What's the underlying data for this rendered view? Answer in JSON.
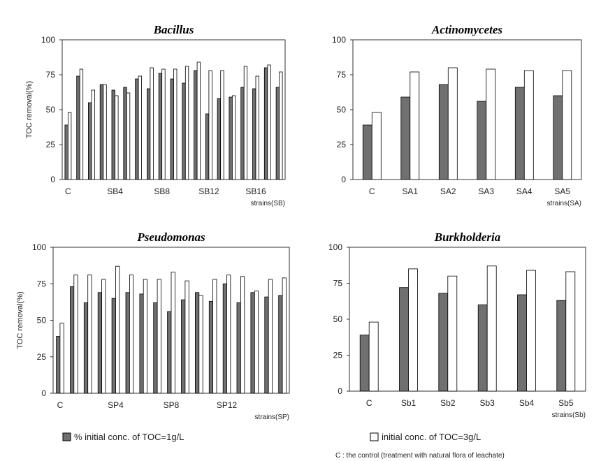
{
  "legend": {
    "series1_label": "% initial conc. of TOC=1g/L",
    "series2_label": "initial conc. of TOC=3g/L",
    "series1_color": "#707070",
    "series2_color": "#ffffff",
    "footnote": "C : the control (treatment with natural flora of leachate)"
  },
  "chart_data": [
    {
      "type": "bar",
      "title": "Bacillus",
      "ylabel": "TOC removal(%)",
      "xlabel": "strains(SB)",
      "ylim": [
        0,
        100
      ],
      "yticks": [
        "0",
        "25",
        "50",
        "75",
        "100"
      ],
      "xtick_labels": [
        {
          "label": "C",
          "index": 0
        },
        {
          "label": "SB4",
          "index": 4
        },
        {
          "label": "SB8",
          "index": 8
        },
        {
          "label": "SB12",
          "index": 12
        },
        {
          "label": "SB16",
          "index": 16
        }
      ],
      "categories": [
        "C",
        "SB1",
        "SB2",
        "SB3",
        "SB4",
        "SB5",
        "SB6",
        "SB7",
        "SB8",
        "SB9",
        "SB10",
        "SB11",
        "SB12",
        "SB13",
        "SB14",
        "SB15",
        "SB16",
        "SB17",
        "SB18"
      ],
      "series": [
        {
          "name": "% initial conc. of TOC=1g/L",
          "values": [
            39,
            74,
            55,
            68,
            64,
            66,
            72,
            65,
            76,
            72,
            69,
            78,
            47,
            58,
            59,
            66,
            65,
            80,
            66
          ]
        },
        {
          "name": "initial conc. of TOC=3g/L",
          "values": [
            48,
            79,
            64,
            68,
            60,
            62,
            74,
            80,
            79,
            79,
            81,
            84,
            78,
            78,
            60,
            81,
            74,
            82,
            77
          ]
        }
      ]
    },
    {
      "type": "bar",
      "title": "Actinomycetes",
      "ylabel": "",
      "xlabel": "strains(SA)",
      "ylim": [
        0,
        100
      ],
      "yticks": [
        "0",
        "25",
        "50",
        "75",
        "100"
      ],
      "xtick_labels": [
        {
          "label": "C",
          "index": 0
        },
        {
          "label": "SA1",
          "index": 1
        },
        {
          "label": "SA2",
          "index": 2
        },
        {
          "label": "SA3",
          "index": 3
        },
        {
          "label": "SA4",
          "index": 4
        },
        {
          "label": "SA5",
          "index": 5
        }
      ],
      "categories": [
        "C",
        "SA1",
        "SA2",
        "SA3",
        "SA4",
        "SA5"
      ],
      "series": [
        {
          "name": "% initial conc. of TOC=1g/L",
          "values": [
            39,
            59,
            68,
            56,
            66,
            60
          ]
        },
        {
          "name": "initial conc. of TOC=3g/L",
          "values": [
            48,
            77,
            80,
            79,
            78,
            78
          ]
        }
      ]
    },
    {
      "type": "bar",
      "title": "Pseudomonas",
      "ylabel": "TOC removal(%)",
      "xlabel": "strains(SP)",
      "ylim": [
        0,
        100
      ],
      "yticks": [
        "0",
        "25",
        "50",
        "75",
        "100"
      ],
      "xtick_labels": [
        {
          "label": "C",
          "index": 0
        },
        {
          "label": "SP4",
          "index": 4
        },
        {
          "label": "SP8",
          "index": 8
        },
        {
          "label": "SP12",
          "index": 12
        }
      ],
      "categories": [
        "C",
        "SP1",
        "SP2",
        "SP3",
        "SP4",
        "SP5",
        "SP6",
        "SP7",
        "SP8",
        "SP9",
        "SP10",
        "SP11",
        "SP12",
        "SP13",
        "SP14",
        "SP15",
        "SP16"
      ],
      "series": [
        {
          "name": "% initial conc. of TOC=1g/L",
          "values": [
            39,
            73,
            62,
            69,
            65,
            69,
            68,
            62,
            56,
            64,
            69,
            63,
            75,
            62,
            69,
            66,
            67
          ]
        },
        {
          "name": "initial conc. of TOC=3g/L",
          "values": [
            48,
            81,
            81,
            78,
            87,
            81,
            78,
            78,
            83,
            77,
            67,
            78,
            81,
            80,
            70,
            78,
            79
          ]
        }
      ]
    },
    {
      "type": "bar",
      "title": "Burkholderia",
      "ylabel": "",
      "xlabel": "strains(Sb)",
      "ylim": [
        0,
        100
      ],
      "yticks": [
        "0",
        "25",
        "50",
        "75",
        "100"
      ],
      "xtick_labels": [
        {
          "label": "C",
          "index": 0
        },
        {
          "label": "Sb1",
          "index": 1
        },
        {
          "label": "Sb2",
          "index": 2
        },
        {
          "label": "Sb3",
          "index": 3
        },
        {
          "label": "Sb4",
          "index": 4
        },
        {
          "label": "Sb5",
          "index": 5
        }
      ],
      "categories": [
        "C",
        "Sb1",
        "Sb2",
        "Sb3",
        "Sb4",
        "Sb5"
      ],
      "series": [
        {
          "name": "% initial conc. of TOC=1g/L",
          "values": [
            39,
            72,
            68,
            60,
            67,
            63
          ]
        },
        {
          "name": "initial conc. of TOC=3g/L",
          "values": [
            48,
            85,
            80,
            87,
            84,
            83
          ]
        }
      ]
    }
  ]
}
